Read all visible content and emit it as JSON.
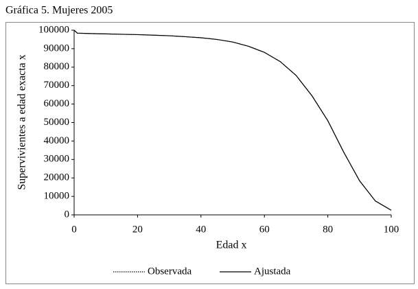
{
  "chart_data": {
    "type": "line",
    "title": "Gráfica 5. Mujeres 2005",
    "x_label": "Edad x",
    "y_label": "Supervivientes a edad exacta x",
    "x": [
      0,
      1,
      5,
      10,
      15,
      20,
      25,
      30,
      35,
      40,
      45,
      50,
      55,
      60,
      65,
      70,
      75,
      80,
      85,
      90,
      95,
      100
    ],
    "series": [
      {
        "name": "Observada",
        "color": "#000000",
        "style": "dotted",
        "values": [
          100000,
          98400,
          98200,
          98000,
          97800,
          97600,
          97300,
          97000,
          96500,
          95900,
          95000,
          93600,
          91300,
          88000,
          83000,
          75500,
          64500,
          51000,
          34000,
          18500,
          7500,
          2500
        ]
      },
      {
        "name": "Ajustada",
        "color": "#000000",
        "style": "solid",
        "values": [
          100000,
          98400,
          98200,
          98000,
          97800,
          97600,
          97300,
          97000,
          96500,
          95900,
          95000,
          93600,
          91300,
          88000,
          83000,
          75500,
          64500,
          51000,
          34000,
          18500,
          7500,
          2500
        ]
      }
    ],
    "xlim": [
      0,
      100
    ],
    "xticks": [
      0,
      20,
      40,
      60,
      80,
      100
    ],
    "ylim": [
      0,
      100000
    ],
    "yticks": [
      0,
      10000,
      20000,
      30000,
      40000,
      50000,
      60000,
      70000,
      80000,
      90000,
      100000
    ],
    "grid": false,
    "legend": "bottom"
  }
}
